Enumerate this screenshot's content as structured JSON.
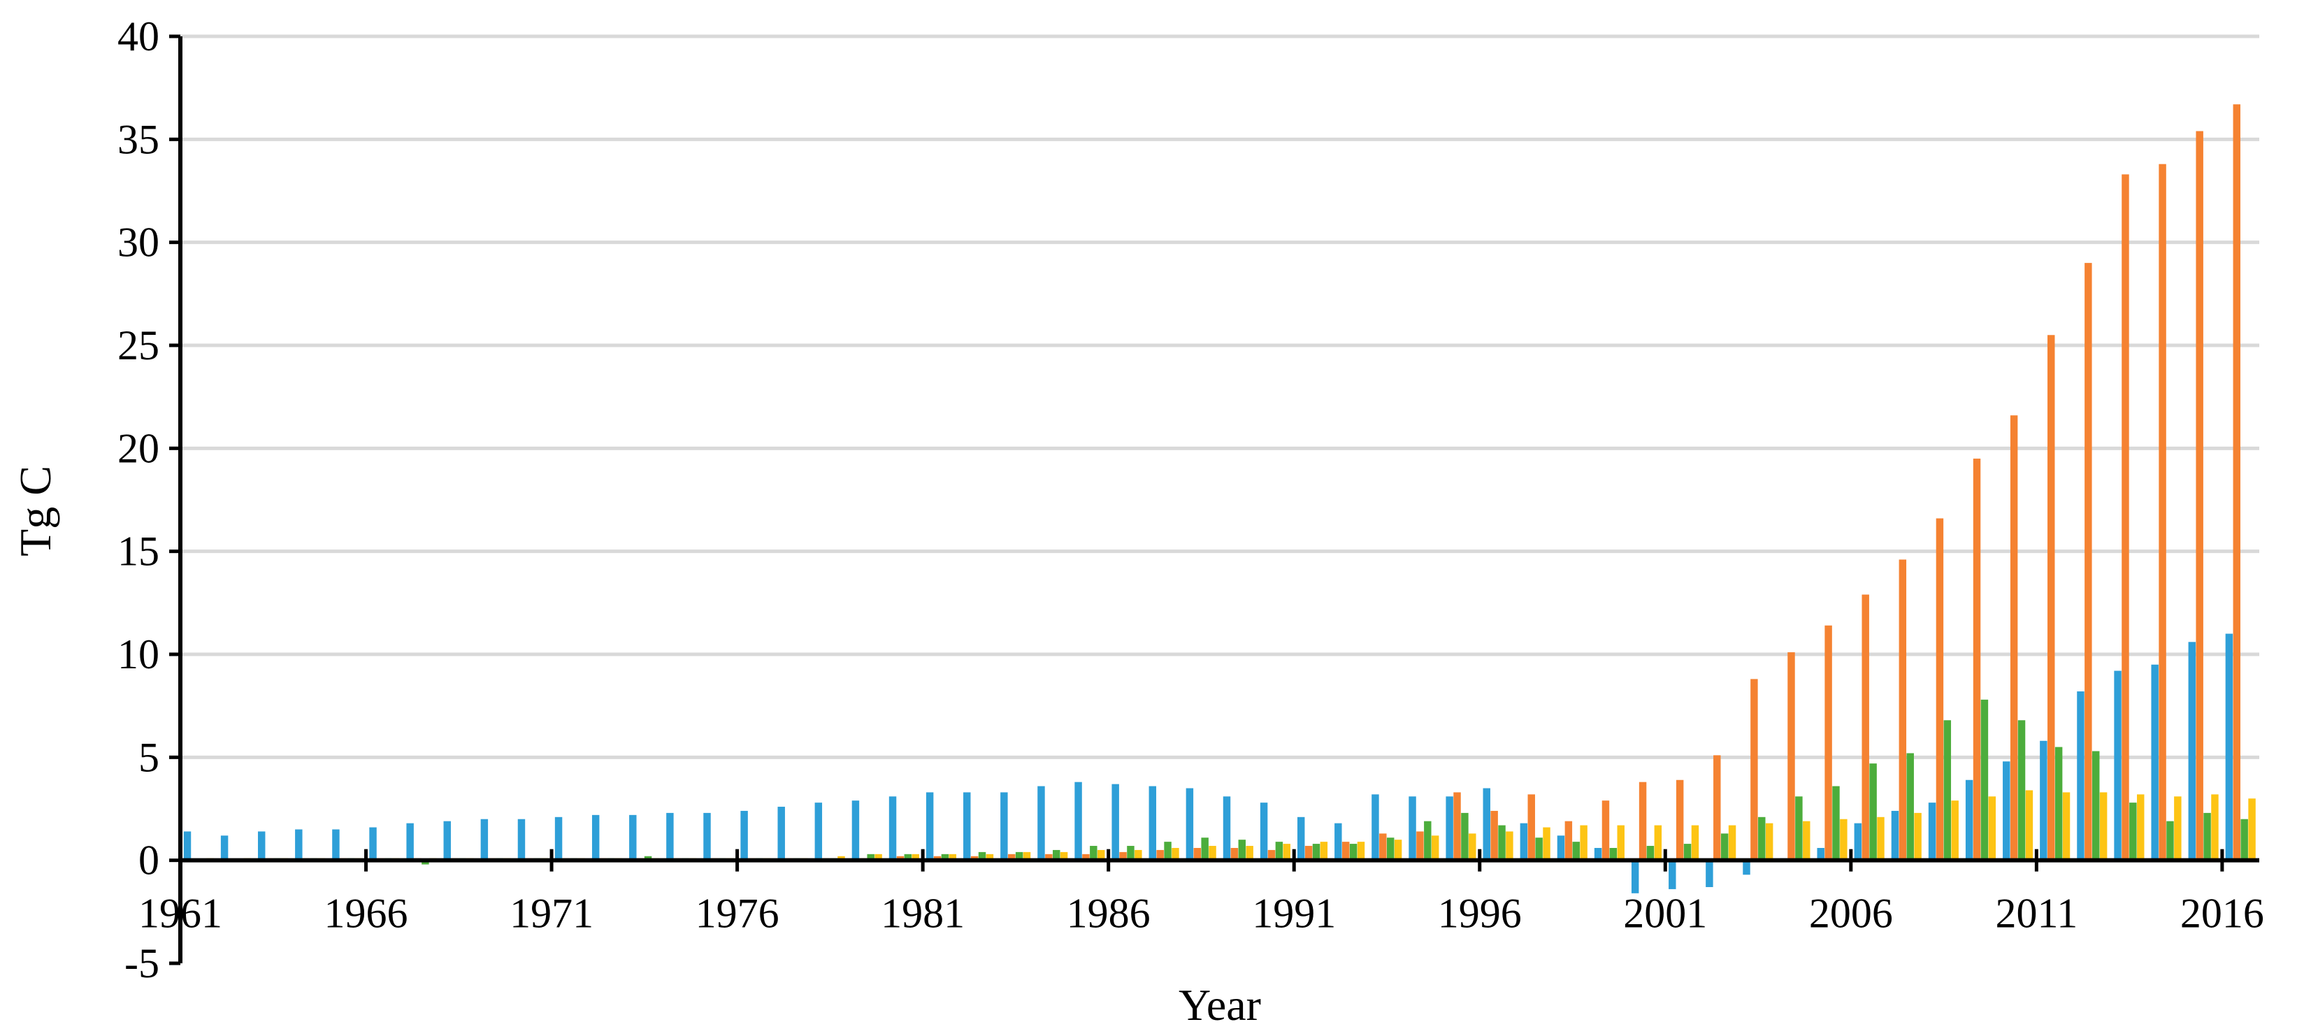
{
  "chart_data": {
    "type": "bar",
    "title": "",
    "xlabel": "Year",
    "ylabel": "Tg C",
    "ylim": [
      -5,
      40
    ],
    "yticks": [
      -5,
      0,
      5,
      10,
      15,
      20,
      25,
      30,
      35,
      40
    ],
    "ytick_labels": [
      "-5",
      "0",
      "5",
      "10",
      "15",
      "20",
      "25",
      "30",
      "35",
      "40"
    ],
    "xtick_labels": [
      "1961",
      "1966",
      "1971",
      "1976",
      "1981",
      "1986",
      "1991",
      "1996",
      "2001",
      "2006",
      "2011",
      "2016"
    ],
    "grid": "horizontal",
    "legend": "none",
    "categories": [
      "1961",
      "1962",
      "1963",
      "1964",
      "1965",
      "1966",
      "1967",
      "1968",
      "1969",
      "1970",
      "1971",
      "1972",
      "1973",
      "1974",
      "1975",
      "1976",
      "1977",
      "1978",
      "1979",
      "1980",
      "1981",
      "1982",
      "1983",
      "1984",
      "1985",
      "1986",
      "1987",
      "1988",
      "1989",
      "1990",
      "1991",
      "1992",
      "1993",
      "1994",
      "1995",
      "1996",
      "1997",
      "1998",
      "1999",
      "2000",
      "2001",
      "2002",
      "2003",
      "2004",
      "2005",
      "2006",
      "2007",
      "2008",
      "2009",
      "2010",
      "2011",
      "2012",
      "2013",
      "2014",
      "2015",
      "2016"
    ],
    "series": [
      {
        "color": "#2e9fd8",
        "values": [
          1.4,
          1.2,
          1.4,
          1.5,
          1.5,
          1.6,
          1.8,
          1.9,
          2.0,
          2.0,
          2.1,
          2.2,
          2.2,
          2.3,
          2.3,
          2.4,
          2.6,
          2.8,
          2.9,
          3.1,
          3.3,
          3.3,
          3.3,
          3.6,
          3.8,
          3.7,
          3.6,
          3.5,
          3.1,
          2.8,
          2.1,
          1.8,
          3.2,
          3.1,
          3.1,
          3.5,
          1.8,
          1.2,
          0.6,
          -1.6,
          -1.4,
          -1.3,
          -0.7,
          0.1,
          0.6,
          1.8,
          2.4,
          2.8,
          3.9,
          4.8,
          5.8,
          8.2,
          9.2,
          9.5,
          10.6,
          11.0
        ]
      },
      {
        "color": "#f58231",
        "values": [
          0.05,
          0.05,
          0.1,
          0.1,
          0.1,
          0.1,
          0.1,
          0.1,
          0.1,
          0.1,
          0.1,
          0.1,
          0.1,
          0.1,
          0.1,
          0.1,
          0.1,
          0.1,
          0.1,
          0.2,
          0.2,
          0.2,
          0.3,
          0.3,
          0.3,
          0.4,
          0.5,
          0.6,
          0.6,
          0.5,
          0.7,
          0.9,
          1.3,
          1.4,
          3.3,
          2.4,
          3.2,
          1.9,
          2.9,
          3.8,
          3.9,
          5.1,
          8.8,
          10.1,
          11.4,
          12.9,
          14.6,
          16.6,
          19.5,
          21.6,
          25.5,
          29.0,
          33.3,
          33.8,
          35.4,
          36.7
        ]
      },
      {
        "color": "#4cad3c",
        "values": [
          0.05,
          0.05,
          0.1,
          0.1,
          0.1,
          0.1,
          -0.2,
          0.1,
          0.1,
          0.1,
          0.1,
          0.1,
          0.2,
          0.1,
          0.1,
          0.1,
          0.1,
          0.1,
          0.3,
          0.3,
          0.3,
          0.4,
          0.4,
          0.5,
          0.7,
          0.7,
          0.9,
          1.1,
          1.0,
          0.9,
          0.8,
          0.8,
          1.1,
          1.9,
          2.3,
          1.7,
          1.1,
          0.9,
          0.6,
          0.7,
          0.8,
          1.3,
          2.1,
          3.1,
          3.6,
          4.7,
          5.2,
          6.8,
          7.8,
          6.8,
          5.5,
          5.3,
          2.8,
          1.9,
          2.3,
          2.0
        ]
      },
      {
        "color": "#fdc414",
        "values": [
          0.1,
          0.1,
          0.1,
          0.1,
          0.1,
          0.1,
          0.1,
          0.1,
          0.1,
          0.1,
          0.1,
          0.1,
          0.1,
          0.1,
          0.1,
          0.1,
          0.1,
          0.2,
          0.3,
          0.3,
          0.3,
          0.3,
          0.4,
          0.4,
          0.5,
          0.5,
          0.6,
          0.7,
          0.7,
          0.8,
          0.9,
          0.9,
          1.0,
          1.2,
          1.3,
          1.4,
          1.6,
          1.7,
          1.7,
          1.7,
          1.7,
          1.7,
          1.8,
          1.9,
          2.0,
          2.1,
          2.3,
          2.9,
          3.1,
          3.4,
          3.3,
          3.3,
          3.2,
          3.1,
          3.2,
          3.0
        ]
      }
    ]
  }
}
